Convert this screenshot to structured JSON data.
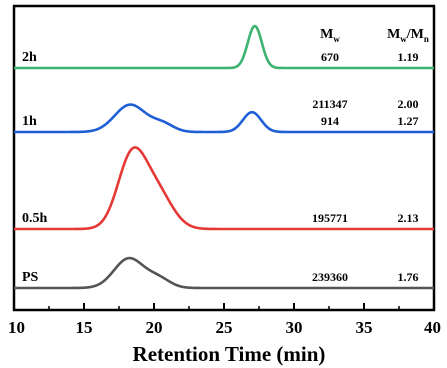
{
  "chart_data": {
    "type": "line",
    "xlabel": "Retention Time (min)",
    "ylabel": "",
    "xlim": [
      10,
      40
    ],
    "xticks": [
      "10",
      "15",
      "20",
      "25",
      "30",
      "35",
      "40"
    ],
    "grid": false,
    "legend": "none",
    "table_header": {
      "mw_base": "M",
      "mw_sub": "w",
      "pdi_base": "M",
      "pdi_sub1": "w",
      "pdi_slash": "/M",
      "pdi_sub2": "n"
    },
    "series": [
      {
        "name": "2h",
        "color": "#3cb371",
        "peaks": [
          {
            "center": 27.2,
            "sigma": 0.5,
            "height": 1.0
          }
        ],
        "mw": [
          "670"
        ],
        "pdi": [
          "1.19"
        ]
      },
      {
        "name": "1h",
        "color": "#1f5fd6",
        "peaks": [
          {
            "center": 18.3,
            "sigma": 1.1,
            "height": 0.62
          },
          {
            "center": 20.6,
            "sigma": 0.8,
            "height": 0.18
          },
          {
            "center": 27.0,
            "sigma": 0.65,
            "height": 0.45
          }
        ],
        "mw": [
          "211347",
          "914"
        ],
        "pdi": [
          "2.00",
          "1.27"
        ]
      },
      {
        "name": "0.5h",
        "color": "#e53935",
        "peaks": [
          {
            "center": 18.4,
            "sigma": 1.0,
            "height": 0.88
          },
          {
            "center": 20.2,
            "sigma": 1.1,
            "height": 0.45
          }
        ],
        "mw": [
          "195771"
        ],
        "pdi": [
          "2.13"
        ]
      },
      {
        "name": "PS",
        "color": "#555555",
        "peaks": [
          {
            "center": 18.2,
            "sigma": 1.05,
            "height": 0.64
          },
          {
            "center": 20.3,
            "sigma": 0.85,
            "height": 0.2
          }
        ],
        "mw": [
          "239360"
        ],
        "pdi": [
          "1.76"
        ]
      }
    ]
  }
}
